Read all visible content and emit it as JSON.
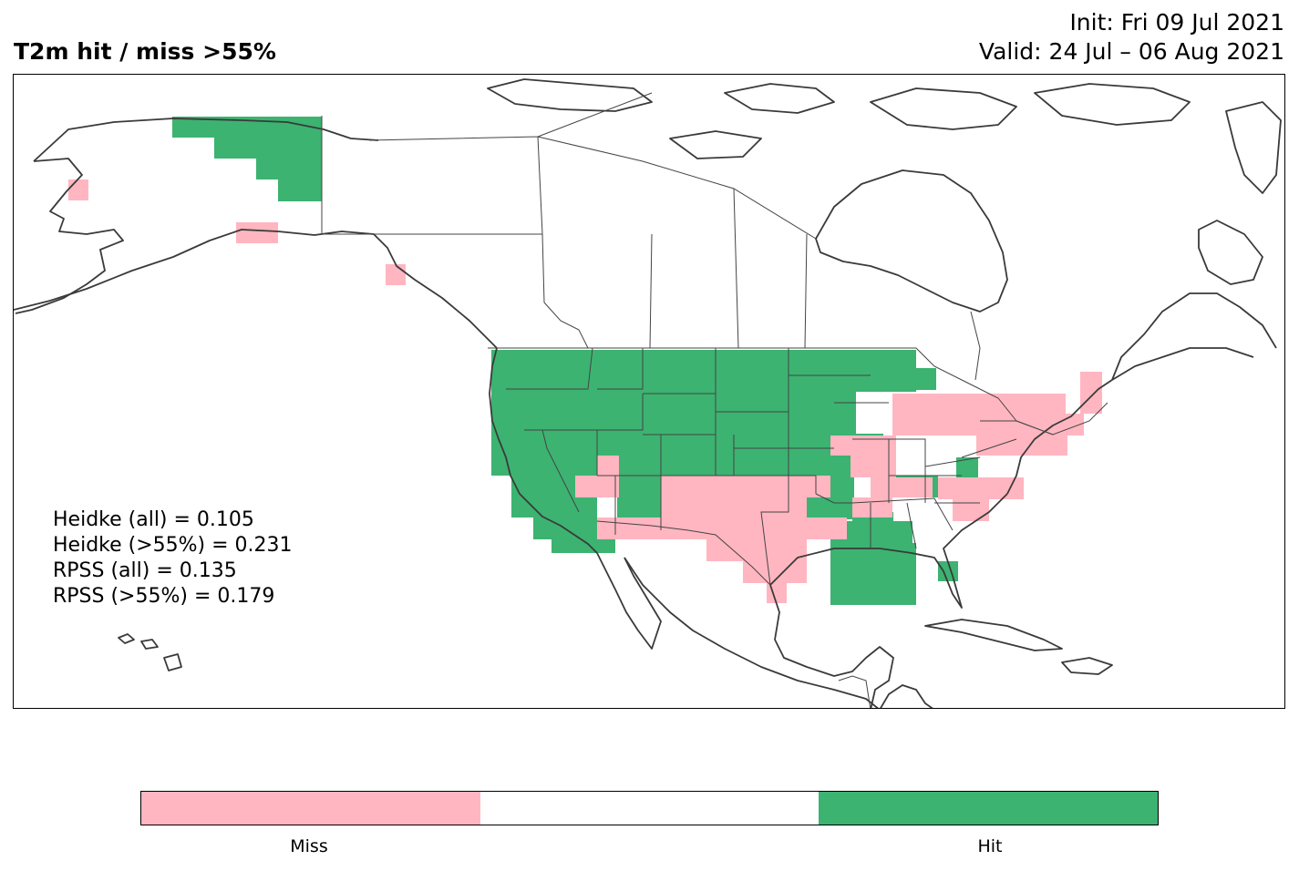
{
  "header": {
    "title": "T2m hit / miss  >55%",
    "init": "Init: Fri 09 Jul 2021",
    "valid": "Valid: 24 Jul – 06 Aug 2021"
  },
  "stats": {
    "heidke_all": "Heidke (all) = 0.105",
    "heidke_55": "Heidke (>55%) = 0.231",
    "rpss_all": "RPSS (all) = 0.135",
    "rpss_55": "RPSS (>55%) = 0.179"
  },
  "colorbar": {
    "segments": [
      {
        "label": "Miss",
        "color": "#ffb6c1"
      },
      {
        "label": "",
        "color": "#ffffff"
      },
      {
        "label": "Hit",
        "color": "#3cb371"
      }
    ],
    "miss_label": "Miss",
    "hit_label": "Hit"
  },
  "colors": {
    "hit": "#3cb371",
    "miss": "#ffb6c1",
    "coast": "#3a3a3a"
  },
  "map_regions": {
    "hit": [
      "Alaska North Slope",
      "Pacific Northwest",
      "Northern Rockies",
      "Northern Plains",
      "Upper Midwest",
      "Great Basin",
      "Southern California",
      "Lower Mississippi Valley",
      "Deep South",
      "Florida peninsula",
      "Chesapeake"
    ],
    "miss": [
      "Western Alaska coast",
      "Southern Alaska coast",
      "Alaska Panhandle",
      "Southern Arizona",
      "New Mexico",
      "Texas",
      "Ohio Valley",
      "Great Lakes east",
      "Northeast",
      "Carolinas",
      "Maine"
    ]
  }
}
